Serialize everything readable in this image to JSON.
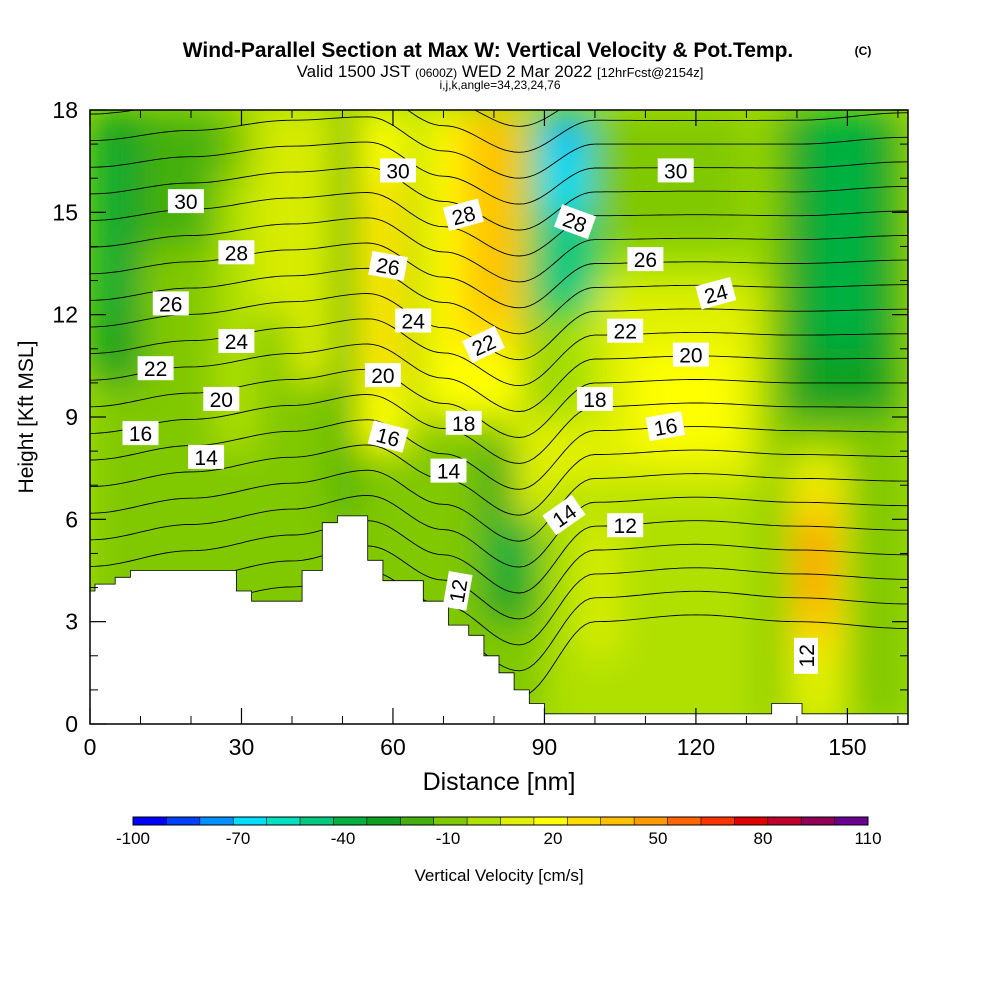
{
  "chart_data": {
    "type": "contour",
    "title": "Wind-Parallel Section at Max W: Vertical Velocity & Pot.Temp.",
    "copyright": "(C)",
    "subtitle_prefix": "Valid 1500 JST",
    "subtitle_utc": "(0600Z)",
    "subtitle_date": "WED 2 Mar 2022",
    "subtitle_fcst": "[12hrFcst@2154z]",
    "subtitle_grid": "i,j,k,angle=34,23,24,76",
    "xlabel": "Distance [nm]",
    "ylabel": "Height [Kft MSL]",
    "xlim": [
      0,
      162
    ],
    "ylim": [
      0,
      18
    ],
    "xticks": [
      "0",
      "30",
      "60",
      "90",
      "120",
      "150"
    ],
    "xtick_values": [
      0,
      30,
      60,
      90,
      120,
      150
    ],
    "yticks": [
      "0",
      "3",
      "6",
      "9",
      "12",
      "15",
      "18"
    ],
    "ytick_values": [
      0,
      3,
      6,
      9,
      12,
      15,
      18
    ],
    "colorbar": {
      "label": "Vertical Velocity [cm/s]",
      "min": -100,
      "step": 10,
      "tick_labels": [
        "-100",
        "-70",
        "-40",
        "-10",
        "20",
        "50",
        "80",
        "110"
      ],
      "colors": [
        "#0000ff",
        "#0040ff",
        "#0090ff",
        "#00ddff",
        "#00e0c0",
        "#00c880",
        "#00b040",
        "#10a020",
        "#44b010",
        "#80c800",
        "#b0e000",
        "#e0f000",
        "#ffff00",
        "#ffdd00",
        "#ffc000",
        "#ff9900",
        "#ff6600",
        "#ff3300",
        "#e00000",
        "#c0002a",
        "#900058",
        "#6a0090"
      ]
    },
    "series": [
      {
        "name": "Vertical Velocity",
        "unit": "cm/s",
        "cells": [
          {
            "x": 0,
            "y": 0,
            "w": 90,
            "h": 18,
            "v": -5
          },
          {
            "x": 0,
            "y": 10,
            "w": 10,
            "h": 8,
            "v": -25
          },
          {
            "x": 2,
            "y": 12,
            "w": 4,
            "h": 5,
            "v": -35
          },
          {
            "x": 10,
            "y": 14,
            "w": 16,
            "h": 4,
            "v": -15
          },
          {
            "x": 25,
            "y": 8,
            "w": 8,
            "h": 8,
            "v": 5
          },
          {
            "x": 33,
            "y": 12,
            "w": 6,
            "h": 6,
            "v": 15
          },
          {
            "x": 40,
            "y": 10,
            "w": 8,
            "h": 8,
            "v": 15
          },
          {
            "x": 48,
            "y": 6,
            "w": 5,
            "h": 12,
            "v": -15
          },
          {
            "x": 53,
            "y": 8,
            "w": 10,
            "h": 10,
            "v": 25
          },
          {
            "x": 56,
            "y": 10,
            "w": 6,
            "h": 6,
            "v": 35
          },
          {
            "x": 63,
            "y": 6,
            "w": 4,
            "h": 10,
            "v": -5
          },
          {
            "x": 66,
            "y": 9,
            "w": 20,
            "h": 9,
            "v": 25
          },
          {
            "x": 72,
            "y": 11,
            "w": 14,
            "h": 7,
            "v": 35
          },
          {
            "x": 76,
            "y": 12,
            "w": 8,
            "h": 6,
            "v": 45
          },
          {
            "x": 78,
            "y": 3,
            "w": 10,
            "h": 5,
            "v": -25
          },
          {
            "x": 80,
            "y": 4,
            "w": 6,
            "h": 2,
            "v": -35
          },
          {
            "x": 84,
            "y": 6,
            "w": 20,
            "h": 3,
            "v": 15
          },
          {
            "x": 88,
            "y": 12,
            "w": 14,
            "h": 6,
            "v": -45
          },
          {
            "x": 90,
            "y": 15,
            "w": 8,
            "h": 3,
            "v": -65
          },
          {
            "x": 92,
            "y": 17,
            "w": 4,
            "h": 1,
            "v": -75
          },
          {
            "x": 100,
            "y": 14,
            "w": 30,
            "h": 4,
            "v": -5
          },
          {
            "x": 100,
            "y": 7,
            "w": 36,
            "h": 6,
            "v": 15
          },
          {
            "x": 108,
            "y": 8,
            "w": 20,
            "h": 3,
            "v": 25
          },
          {
            "x": 90,
            "y": 0,
            "w": 45,
            "h": 7,
            "v": 5
          },
          {
            "x": 98,
            "y": 2,
            "w": 6,
            "h": 4,
            "v": 15
          },
          {
            "x": 133,
            "y": 0,
            "w": 29,
            "h": 18,
            "v": -5
          },
          {
            "x": 138,
            "y": 9,
            "w": 22,
            "h": 9,
            "v": -25
          },
          {
            "x": 142,
            "y": 11,
            "w": 14,
            "h": 7,
            "v": -35
          },
          {
            "x": 138,
            "y": 0,
            "w": 12,
            "h": 8,
            "v": 15
          },
          {
            "x": 140,
            "y": 2,
            "w": 8,
            "h": 5,
            "v": 35
          },
          {
            "x": 141,
            "y": 3,
            "w": 5,
            "h": 3,
            "v": 55
          },
          {
            "x": 142,
            "y": 4,
            "w": 3,
            "h": 2,
            "v": 65
          }
        ]
      },
      {
        "name": "Potential Temperature",
        "contour_levels": [
          11,
          12,
          13,
          14,
          15,
          16,
          17,
          18,
          19,
          20,
          21,
          22,
          23,
          24,
          25,
          26,
          27,
          28,
          29,
          30,
          31,
          32,
          33
        ],
        "heights_x": [
          0,
          20,
          40,
          55,
          70,
          85,
          100,
          120,
          140,
          162
        ],
        "heights_ref": [
          1.5,
          2.0,
          2.5,
          3.0,
          2.0,
          0.8,
          3.0,
          3.2,
          3.0,
          2.8
        ],
        "heights_per_k": [
          0.78,
          0.77,
          0.76,
          0.74,
          0.74,
          0.76,
          0.7,
          0.69,
          0.7,
          0.72
        ]
      },
      {
        "name": "Terrain",
        "profile": [
          [
            0,
            3.9
          ],
          [
            1,
            3.9
          ],
          [
            1,
            4.1
          ],
          [
            5,
            4.1
          ],
          [
            5,
            4.3
          ],
          [
            8,
            4.3
          ],
          [
            8,
            4.5
          ],
          [
            29,
            4.5
          ],
          [
            29,
            3.9
          ],
          [
            32,
            3.9
          ],
          [
            32,
            3.6
          ],
          [
            42,
            3.6
          ],
          [
            42,
            4.5
          ],
          [
            46,
            4.5
          ],
          [
            46,
            5.9
          ],
          [
            49,
            5.9
          ],
          [
            49,
            6.1
          ],
          [
            55,
            6.1
          ],
          [
            55,
            4.8
          ],
          [
            58,
            4.8
          ],
          [
            58,
            4.2
          ],
          [
            66,
            4.2
          ],
          [
            66,
            3.6
          ],
          [
            71,
            3.6
          ],
          [
            71,
            2.9
          ],
          [
            75,
            2.9
          ],
          [
            75,
            2.6
          ],
          [
            78,
            2.6
          ],
          [
            78,
            2.0
          ],
          [
            81,
            2.0
          ],
          [
            81,
            1.5
          ],
          [
            84,
            1.5
          ],
          [
            84,
            1.0
          ],
          [
            87,
            1.0
          ],
          [
            87,
            0.6
          ],
          [
            90,
            0.6
          ],
          [
            90,
            0.3
          ],
          [
            135,
            0.3
          ],
          [
            135,
            0.6
          ],
          [
            141,
            0.6
          ],
          [
            141,
            0.3
          ],
          [
            162,
            0.3
          ]
        ]
      }
    ],
    "contour_labels": [
      {
        "text": "30",
        "x": 19,
        "y": 15.3,
        "rot": 0
      },
      {
        "text": "28",
        "x": 29,
        "y": 13.8,
        "rot": 0
      },
      {
        "text": "26",
        "x": 16,
        "y": 12.3,
        "rot": 0
      },
      {
        "text": "24",
        "x": 29,
        "y": 11.2,
        "rot": 0
      },
      {
        "text": "22",
        "x": 13,
        "y": 10.4,
        "rot": 0
      },
      {
        "text": "20",
        "x": 26,
        "y": 9.5,
        "rot": 0
      },
      {
        "text": "16",
        "x": 10,
        "y": 8.5,
        "rot": 0
      },
      {
        "text": "14",
        "x": 23,
        "y": 7.8,
        "rot": 0
      },
      {
        "text": "30",
        "x": 61,
        "y": 16.2,
        "rot": 0
      },
      {
        "text": "28",
        "x": 74,
        "y": 14.9,
        "rot": -15
      },
      {
        "text": "26",
        "x": 59,
        "y": 13.4,
        "rot": 10
      },
      {
        "text": "24",
        "x": 64,
        "y": 11.8,
        "rot": 0
      },
      {
        "text": "22",
        "x": 78,
        "y": 11.1,
        "rot": -25
      },
      {
        "text": "20",
        "x": 58,
        "y": 10.2,
        "rot": 0
      },
      {
        "text": "18",
        "x": 74,
        "y": 8.8,
        "rot": 0
      },
      {
        "text": "16",
        "x": 59,
        "y": 8.4,
        "rot": 15
      },
      {
        "text": "14",
        "x": 71,
        "y": 7.4,
        "rot": 0
      },
      {
        "text": "12",
        "x": 73,
        "y": 3.9,
        "rot": -80
      },
      {
        "text": "14",
        "x": 94,
        "y": 6.1,
        "rot": -35
      },
      {
        "text": "28",
        "x": 96,
        "y": 14.7,
        "rot": 20
      },
      {
        "text": "30",
        "x": 116,
        "y": 16.2,
        "rot": 0
      },
      {
        "text": "26",
        "x": 110,
        "y": 13.6,
        "rot": 0
      },
      {
        "text": "24",
        "x": 124,
        "y": 12.6,
        "rot": -15
      },
      {
        "text": "22",
        "x": 106,
        "y": 11.5,
        "rot": 0
      },
      {
        "text": "20",
        "x": 119,
        "y": 10.8,
        "rot": 0
      },
      {
        "text": "18",
        "x": 100,
        "y": 9.5,
        "rot": 0
      },
      {
        "text": "16",
        "x": 114,
        "y": 8.7,
        "rot": -10
      },
      {
        "text": "12",
        "x": 106,
        "y": 5.8,
        "rot": 0
      },
      {
        "text": "12",
        "x": 142,
        "y": 2.0,
        "rot": -90
      }
    ]
  }
}
